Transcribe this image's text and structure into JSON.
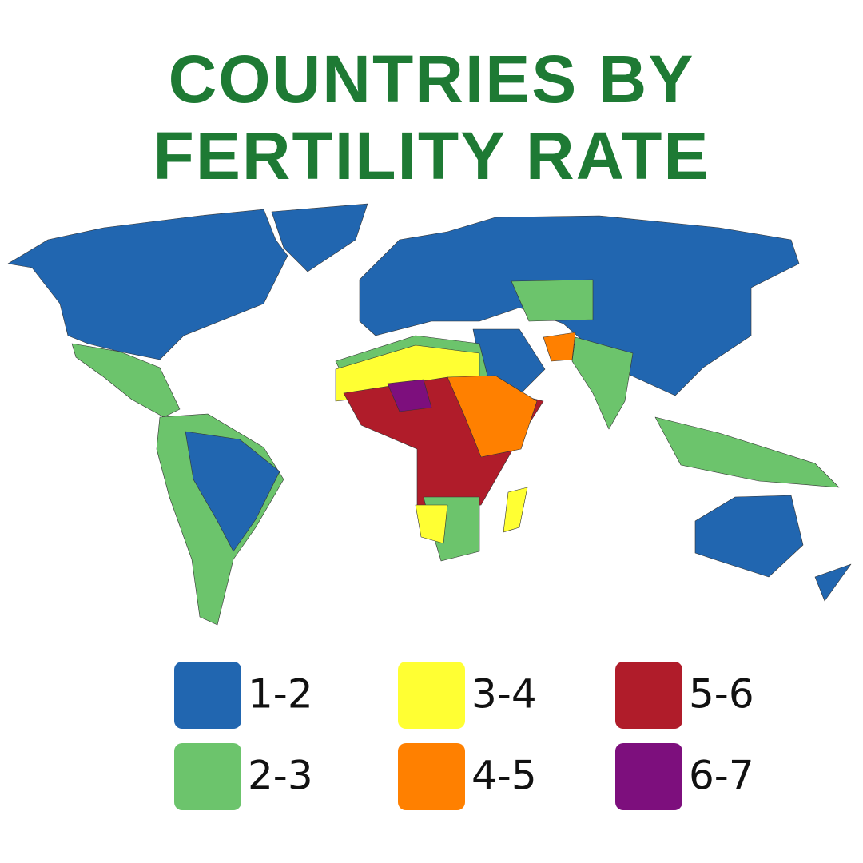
{
  "title_lines": [
    "COUNTRIES BY",
    "FERTILITY RATE"
  ],
  "legend": [
    {
      "label": "1-2",
      "color": "#2166b0"
    },
    {
      "label": "2-3",
      "color": "#6cc46c"
    },
    {
      "label": "3-4",
      "color": "#ffff33"
    },
    {
      "label": "4-5",
      "color": "#ff8000"
    },
    {
      "label": "5-6",
      "color": "#b01c2a"
    },
    {
      "label": "6-7",
      "color": "#7d0f7d"
    }
  ]
}
